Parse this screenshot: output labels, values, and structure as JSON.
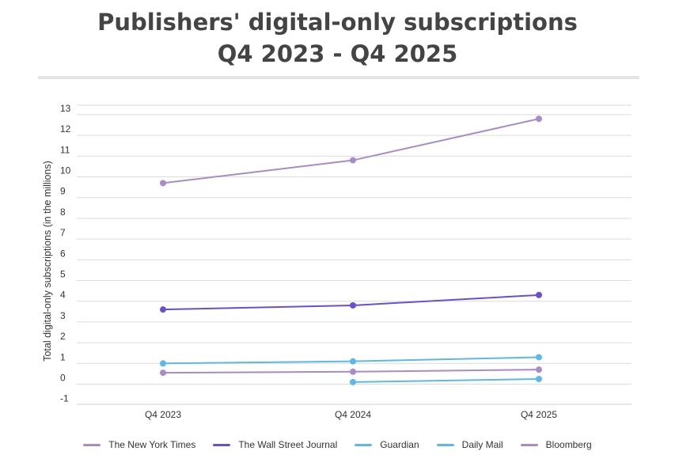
{
  "chart_data": {
    "type": "line",
    "title": "Publishers' digital-only subscriptions",
    "subtitle": "Q4 2023 - Q4 2025",
    "xlabel": "",
    "ylabel": "Total digital-only subscriptions (in the millions)",
    "categories": [
      "Q4 2023",
      "Q4 2024",
      "Q4 2025"
    ],
    "yticks": [
      -1,
      0,
      1,
      2,
      3,
      4,
      5,
      6,
      7,
      8,
      9,
      10,
      11,
      12,
      13
    ],
    "ylim": [
      -1,
      13.5
    ],
    "grid": true,
    "legend_position": "bottom",
    "series": [
      {
        "name": "The New York Times",
        "color": "#a88bc7",
        "values": [
          9.7,
          10.8,
          12.8
        ]
      },
      {
        "name": "The Wall Street Journal",
        "color": "#6a4fd1",
        "values": [
          3.6,
          3.8,
          4.3
        ]
      },
      {
        "name": "Guardian",
        "color": "#5cb8e6",
        "values": [
          1.0,
          1.1,
          1.3
        ]
      },
      {
        "name": "Daily Mail",
        "color": "#5cb8e6",
        "values": [
          null,
          0.1,
          0.25
        ]
      },
      {
        "name": "Bloomberg",
        "color": "#a88bc7",
        "values": [
          0.55,
          0.6,
          0.7
        ]
      }
    ]
  }
}
